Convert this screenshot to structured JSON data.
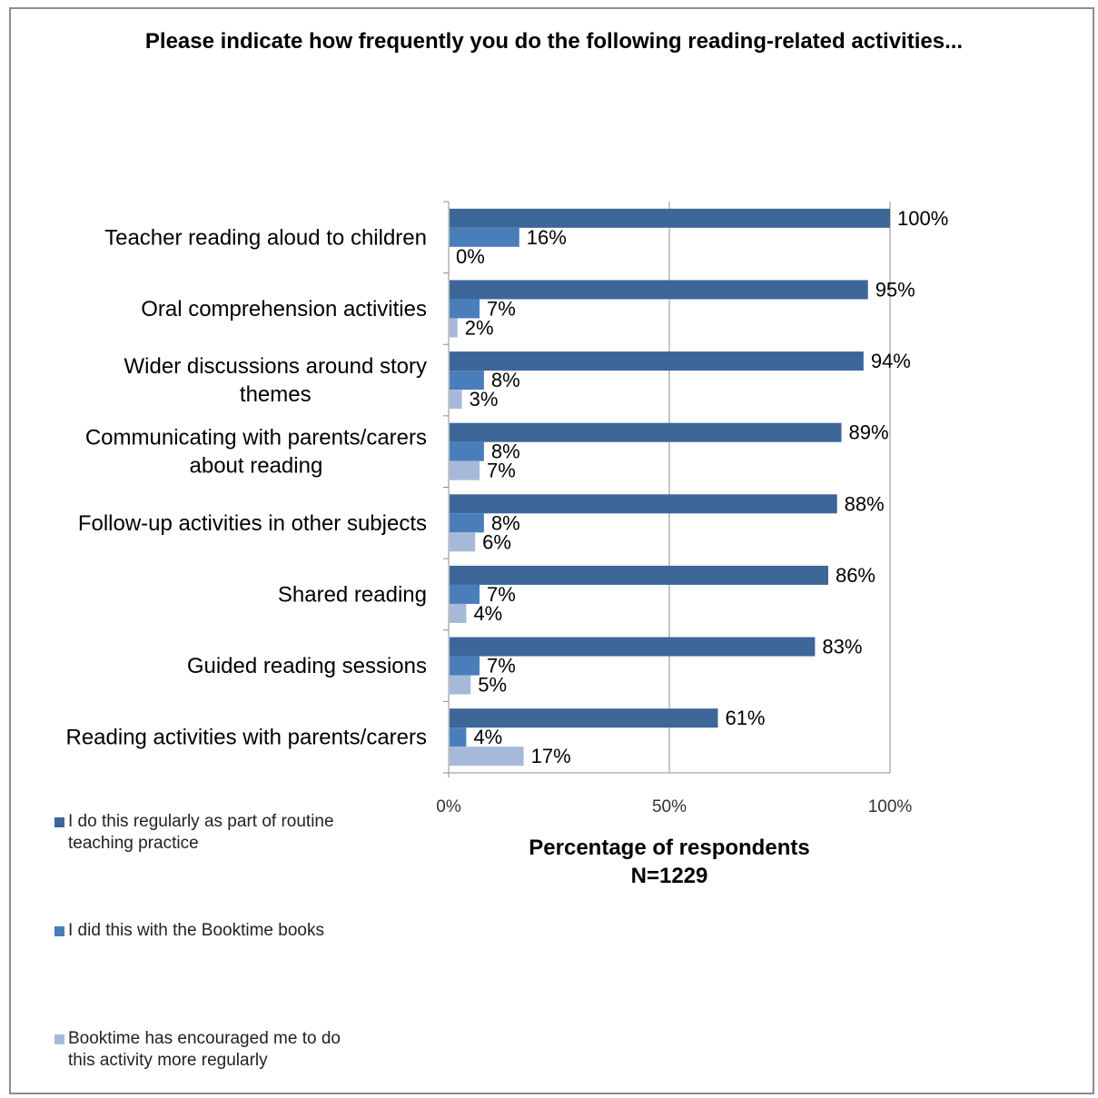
{
  "chart_data": {
    "type": "bar",
    "orientation": "horizontal",
    "title": "Please indicate how frequently you do the following reading-related activities...",
    "xlabel": "Percentage of respondents",
    "xlabel_sub": "N=1229",
    "ylabel": "",
    "xlim": [
      0,
      100
    ],
    "x_ticks": [
      "0%",
      "50%",
      "100%"
    ],
    "grid": true,
    "legend_position": "bottom-left",
    "categories": [
      [
        "Teacher reading aloud to children"
      ],
      [
        "Oral comprehension activities"
      ],
      [
        "Wider discussions around story",
        "themes"
      ],
      [
        "Communicating with parents/carers",
        "about reading"
      ],
      [
        "Follow-up activities in other subjects"
      ],
      [
        "Shared reading"
      ],
      [
        "Guided reading sessions"
      ],
      [
        "Reading activities with parents/carers"
      ]
    ],
    "series": [
      {
        "name": "I do this regularly as part of routine teaching practice",
        "color": "#3d6699",
        "values": [
          100,
          95,
          94,
          89,
          88,
          86,
          83,
          61
        ],
        "labels": [
          "100%",
          "95%",
          "94%",
          "89%",
          "88%",
          "86%",
          "83%",
          "61%"
        ]
      },
      {
        "name": "I did this with the Booktime books",
        "color": "#4a7ebb",
        "values": [
          16,
          7,
          8,
          8,
          8,
          7,
          7,
          4
        ],
        "labels": [
          "16%",
          "7%",
          "8%",
          "8%",
          "8%",
          "7%",
          "7%",
          "4%"
        ]
      },
      {
        "name": "Booktime has encouraged me to do this activity more regularly",
        "color": "#a7b9d9",
        "values": [
          0,
          2,
          3,
          7,
          6,
          4,
          5,
          17
        ],
        "labels": [
          "0%",
          "2%",
          "3%",
          "7%",
          "6%",
          "4%",
          "5%",
          "17%"
        ]
      }
    ],
    "legend": [
      [
        "I do this regularly as part of routine",
        "teaching practice"
      ],
      [
        "I did this with the Booktime books"
      ],
      [
        "Booktime has encouraged me to do",
        "this activity more regularly"
      ]
    ]
  }
}
